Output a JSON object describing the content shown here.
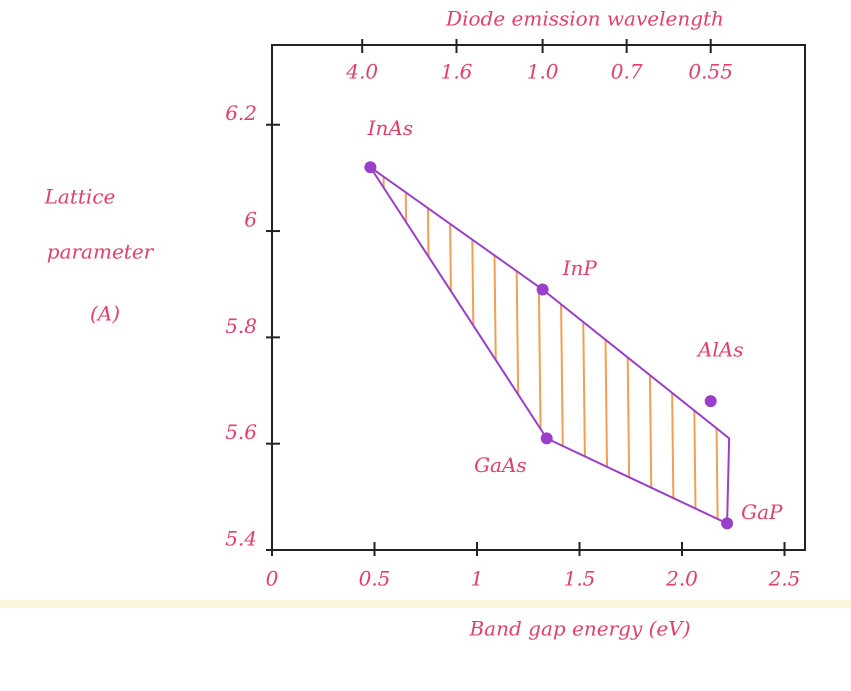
{
  "chart_data": {
    "type": "scatter",
    "title": "Diode emission wavelength",
    "x_label": "Band gap energy (eV)",
    "y_label": [
      "Lattice",
      "parameter",
      "(A)"
    ],
    "xlim": [
      0,
      2.6
    ],
    "ylim": [
      5.4,
      6.35
    ],
    "xticks": [
      0,
      0.5,
      1,
      1.5,
      {
        "value": 2,
        "label": "2.0"
      },
      2.5
    ],
    "yticks": [
      5.4,
      5.6,
      5.8,
      6.0,
      6.2
    ],
    "top_ticks": [
      {
        "value": 0.44,
        "label": "4.0"
      },
      {
        "value": 0.9,
        "label": "1.6"
      },
      {
        "value": 1.32,
        "label": "1.0"
      },
      {
        "value": 1.73,
        "label": "0.7"
      },
      {
        "value": 2.14,
        "label": "0.55"
      }
    ],
    "points": {
      "labels": [
        "InAs",
        "InP",
        "AlAs",
        "GaAs",
        "GaP"
      ],
      "x": [
        0.48,
        1.32,
        2.14,
        1.34,
        2.22
      ],
      "y": [
        6.12,
        5.89,
        5.68,
        5.61,
        5.45
      ],
      "color": "#9a3fc9"
    },
    "region": {
      "x": [
        0.48,
        1.32,
        2.23,
        2.22,
        1.34
      ],
      "y": [
        6.12,
        5.89,
        5.61,
        5.45,
        5.61
      ],
      "color": "#9a3fc9",
      "hatch_color": "#f0a050"
    }
  }
}
